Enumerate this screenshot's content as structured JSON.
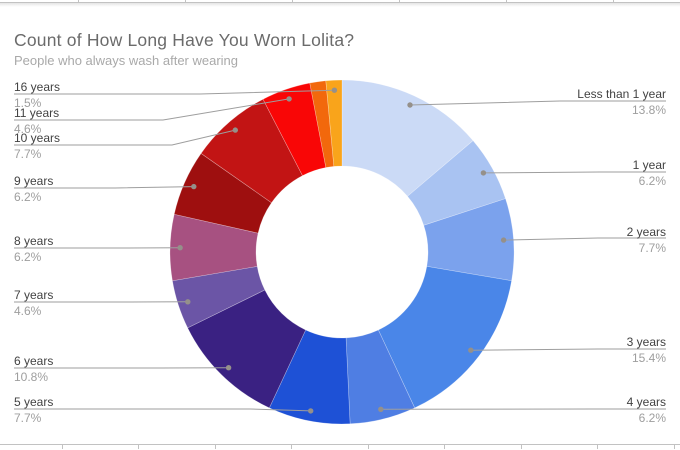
{
  "header": {
    "title": "Count of How Long Have You Worn Lolita?",
    "subtitle": "People who always wash after wearing"
  },
  "chart_data": {
    "type": "donut",
    "title": "Count of How Long Have You Worn Lolita?",
    "subtitle": "People who always wash after wearing",
    "legend_position": "outside-callout-labels",
    "inner_radius_ratio": 0.5,
    "slices": [
      {
        "label": "Less than 1 year",
        "percent": "13.8%",
        "percent_value": 13.8,
        "color": "#cbdaf6",
        "label_hidden": false
      },
      {
        "label": "1 year",
        "percent": "6.2%",
        "percent_value": 6.2,
        "color": "#a9c3f2",
        "label_hidden": false
      },
      {
        "label": "2 years",
        "percent": "7.7%",
        "percent_value": 7.7,
        "color": "#7ba2ed",
        "label_hidden": false
      },
      {
        "label": "3 years",
        "percent": "15.4%",
        "percent_value": 15.4,
        "color": "#4a86e8",
        "label_hidden": false
      },
      {
        "label": "4 years",
        "percent": "6.2%",
        "percent_value": 6.2,
        "color": "#4f7ee3",
        "label_hidden": false
      },
      {
        "label": "5 years",
        "percent": "7.7%",
        "percent_value": 7.7,
        "color": "#1e51d6",
        "label_hidden": false
      },
      {
        "label": "6 years",
        "percent": "10.8%",
        "percent_value": 10.8,
        "color": "#3a2182",
        "label_hidden": false
      },
      {
        "label": "7 years",
        "percent": "4.6%",
        "percent_value": 4.6,
        "color": "#6b55a6",
        "label_hidden": false
      },
      {
        "label": "8 years",
        "percent": "6.2%",
        "percent_value": 6.2,
        "color": "#a75181",
        "label_hidden": false
      },
      {
        "label": "9 years",
        "percent": "6.2%",
        "percent_value": 6.2,
        "color": "#9e0f0f",
        "label_hidden": false
      },
      {
        "label": "10 years",
        "percent": "7.7%",
        "percent_value": 7.7,
        "color": "#c21414",
        "label_hidden": false
      },
      {
        "label": "11 years",
        "percent": "4.6%",
        "percent_value": 4.6,
        "color": "#f90606",
        "label_hidden": false
      },
      {
        "label": "",
        "percent": "",
        "percent_value": 1.5,
        "color": "#f2680c",
        "label_hidden": true
      },
      {
        "label": "16 years",
        "percent": "1.5%",
        "percent_value": 1.5,
        "color": "#f9a41b",
        "label_hidden": false
      }
    ]
  },
  "colors": {
    "leader_line": "#9e9e9e",
    "callout_dot": "#95908a",
    "label_text": "#424242",
    "percent_text": "#9e9e9e",
    "title_text": "#6b6b6b",
    "subtitle_text": "#a9a9a9",
    "sheet_gridline": "#c2c2c2",
    "chart_background": "#ffffff"
  }
}
